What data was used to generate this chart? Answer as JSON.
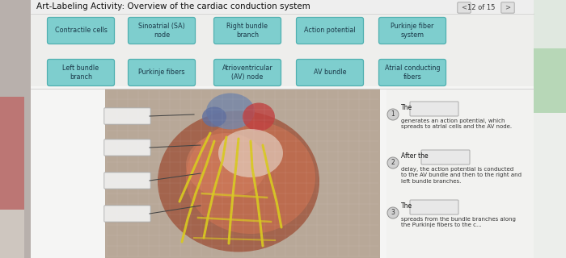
{
  "title": "Art-Labeling Activity: Overview of the cardiac conduction system",
  "page_indicator": "12 of 15",
  "bg_outer": "#d8d4d0",
  "bg_panel": "#f0eeec",
  "bg_left_photo": "#c8c0b8",
  "bg_right_strip": "#e8e4e0",
  "btn_fill": "#7ecece",
  "btn_edge": "#50b0b0",
  "btn_text": "#1a3848",
  "ans_fill": "#e8e8e8",
  "ans_edge": "#aaaaaa",
  "nav_fill": "#e0e0e0",
  "nav_edge": "#aaaaaa",
  "title_color": "#111111",
  "row1_buttons": [
    "Contractile cells",
    "Sinoatrial (SA)\nnode",
    "Right bundle\nbranch",
    "Action potential",
    "Purkinje fiber\nsystem"
  ],
  "row2_buttons": [
    "Left bundle\nbranch",
    "Purkinje fibers",
    "Atrioventricular\n(AV) node",
    "AV bundle",
    "Atrial conducting\nfibers"
  ],
  "clues": [
    {
      "num": "1",
      "prefix": "The",
      "body": "generates an action potential, which\nspreads to atrial cells and the AV node."
    },
    {
      "num": "2",
      "prefix": "After the",
      "body": "delay, the action potential is conducted\nto the AV bundle and then to the right and\nleft bundle branches."
    },
    {
      "num": "3",
      "prefix": "The",
      "body": "spreads from the bundle branches along\nthe Purkinje fibers to the c..."
    }
  ],
  "title_fontsize": 7.5,
  "btn_fontsize": 5.8,
  "clue_fontsize": 5.5,
  "body_fontsize": 5.0
}
